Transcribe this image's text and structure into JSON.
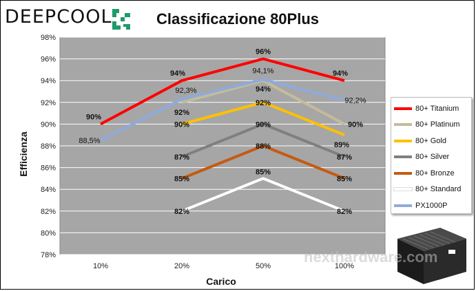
{
  "header": {
    "brand": "DEEPCOOL",
    "title": "Classificazione 80Plus"
  },
  "watermark": "nexthardware.com",
  "colors": {
    "plot_bg": "#a6a6a6",
    "grid": "#ffffff",
    "brand_logo": "#1f9a6b"
  },
  "chart_data": {
    "type": "line",
    "title": "Classificazione 80Plus",
    "xlabel": "Carico",
    "ylabel": "Efficienza",
    "categories": [
      "10%",
      "20%",
      "50%",
      "100%"
    ],
    "ylim": [
      78,
      98
    ],
    "yticks": [
      "78%",
      "80%",
      "82%",
      "84%",
      "86%",
      "88%",
      "90%",
      "92%",
      "94%",
      "96%",
      "98%"
    ],
    "grid": true,
    "legend_position": "right",
    "series": [
      {
        "name": "80+ Titanium",
        "color": "#ff0000",
        "values": [
          90,
          94,
          96,
          94
        ],
        "labels": [
          "90%",
          "94%",
          "96%",
          "94%"
        ]
      },
      {
        "name": "80+ Platinum",
        "color": "#c4bc98",
        "values": [
          null,
          92,
          94,
          90
        ],
        "labels": [
          "",
          "92%",
          "94%",
          "90%"
        ]
      },
      {
        "name": "80+ Gold",
        "color": "#ffc000",
        "values": [
          null,
          90,
          92,
          89
        ],
        "labels": [
          "",
          "90%",
          "92%",
          "89%"
        ]
      },
      {
        "name": "80+ Silver",
        "color": "#7f7f7f",
        "values": [
          null,
          87,
          90,
          87
        ],
        "labels": [
          "",
          "87%",
          "90%",
          "87%"
        ]
      },
      {
        "name": "80+ Bronze",
        "color": "#c55a11",
        "values": [
          null,
          85,
          88,
          85
        ],
        "labels": [
          "",
          "85%",
          "88%",
          "85%"
        ]
      },
      {
        "name": "80+ Standard",
        "color": "#ffffff",
        "values": [
          null,
          82,
          85,
          82
        ],
        "labels": [
          "",
          "82%",
          "85%",
          "82%"
        ]
      },
      {
        "name": "PX1000P",
        "color": "#8faadc",
        "values": [
          88.5,
          92.3,
          94.1,
          92.2
        ],
        "labels": [
          "88,5%",
          "92,3%",
          "94,1%",
          "92,2%"
        ]
      }
    ]
  }
}
